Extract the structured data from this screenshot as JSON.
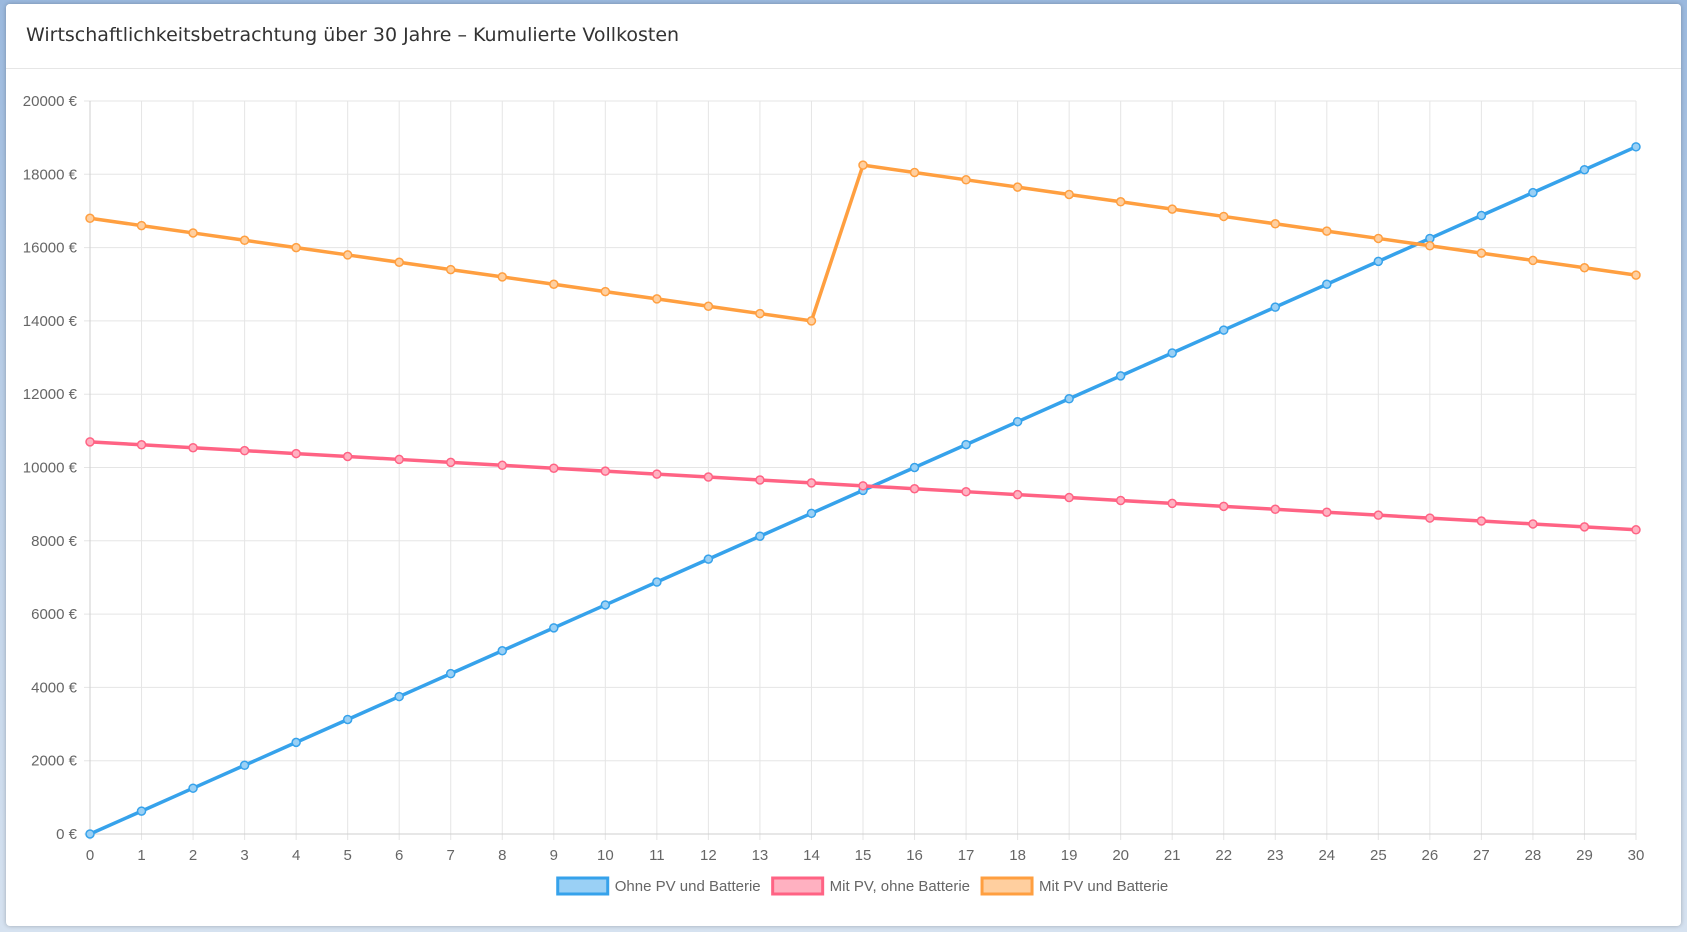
{
  "card": {
    "title": "Wirtschaftlichkeitsbetrachtung über 30 Jahre – Kumulierte Vollkosten"
  },
  "chart_data": {
    "type": "line",
    "title": "",
    "xlabel": "",
    "ylabel": "",
    "x": [
      0,
      1,
      2,
      3,
      4,
      5,
      6,
      7,
      8,
      9,
      10,
      11,
      12,
      13,
      14,
      15,
      16,
      17,
      18,
      19,
      20,
      21,
      22,
      23,
      24,
      25,
      26,
      27,
      28,
      29,
      30
    ],
    "ylim": [
      0,
      20000
    ],
    "y_ticks": [
      0,
      2000,
      4000,
      6000,
      8000,
      10000,
      12000,
      14000,
      16000,
      18000,
      20000
    ],
    "y_tick_suffix": " €",
    "grid": true,
    "legend_position": "bottom",
    "series": [
      {
        "name": "Ohne PV und Batterie",
        "color": "#36a2eb",
        "fill": "#9ad0f5",
        "values": [
          0,
          625,
          1250,
          1875,
          2500,
          3125,
          3750,
          4375,
          5000,
          5625,
          6250,
          6875,
          7500,
          8125,
          8750,
          9375,
          10000,
          10625,
          11250,
          11875,
          12500,
          13125,
          13750,
          14375,
          15000,
          15625,
          16250,
          16875,
          17500,
          18125,
          18750
        ]
      },
      {
        "name": "Mit PV, ohne Batterie",
        "color": "#ff6384",
        "fill": "#ffb1c1",
        "values": [
          10700,
          10620,
          10540,
          10460,
          10380,
          10300,
          10220,
          10140,
          10060,
          9980,
          9900,
          9820,
          9740,
          9660,
          9580,
          9500,
          9420,
          9340,
          9260,
          9180,
          9100,
          9020,
          8940,
          8860,
          8780,
          8700,
          8620,
          8540,
          8460,
          8380,
          8300
        ]
      },
      {
        "name": "Mit PV und Batterie",
        "color": "#ff9f40",
        "fill": "#ffcf9f",
        "values": [
          16800,
          16600,
          16400,
          16200,
          16000,
          15800,
          15600,
          15400,
          15200,
          15000,
          14800,
          14600,
          14400,
          14200,
          14000,
          18250,
          18050,
          17850,
          17650,
          17450,
          17250,
          17050,
          16850,
          16650,
          16450,
          16250,
          16050,
          15850,
          15650,
          15450,
          15250
        ]
      }
    ]
  }
}
